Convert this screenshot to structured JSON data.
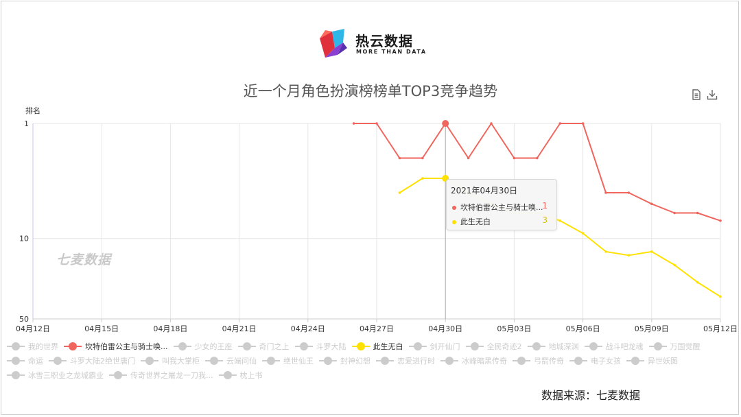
{
  "brand": {
    "name": "热云数据",
    "tagline": "MORE THAN DATA"
  },
  "watermark": "七麦数据",
  "source": "数据来源：七麦数据",
  "toolbar": {
    "icons": [
      "data-view-icon",
      "download-icon"
    ]
  },
  "chart_data": {
    "type": "line",
    "title": "近一个月角色扮演榜榜单TOP3竞争趋势",
    "ylabel": "排名",
    "xlabel": "",
    "y_scale": "log",
    "y_inverted": true,
    "ylim": [
      1,
      50
    ],
    "y_ticks": [
      "1",
      "10",
      "50"
    ],
    "x_tick_labels": [
      "04月12日",
      "04月15日",
      "04月18日",
      "04月21日",
      "04月24日",
      "04月27日",
      "04月30日",
      "05月03日",
      "05月06日",
      "05月09日",
      "05月12日"
    ],
    "x": [
      "04月12日",
      "04月13日",
      "04月14日",
      "04月15日",
      "04月16日",
      "04月17日",
      "04月18日",
      "04月19日",
      "04月20日",
      "04月21日",
      "04月22日",
      "04月23日",
      "04月24日",
      "04月25日",
      "04月26日",
      "04月27日",
      "04月28日",
      "04月29日",
      "04月30日",
      "05月01日",
      "05月02日",
      "05月03日",
      "05月04日",
      "05月05日",
      "05月06日",
      "05月07日",
      "05月08日",
      "05月09日",
      "05月10日",
      "05月11日",
      "05月12日"
    ],
    "grid": true,
    "series": [
      {
        "name": "坎特伯雷公主与骑士唤...",
        "color": "#f0665e",
        "values": [
          null,
          null,
          null,
          null,
          null,
          null,
          null,
          null,
          null,
          null,
          null,
          null,
          null,
          null,
          1,
          1,
          2,
          2,
          1,
          2,
          1,
          2,
          2,
          1,
          1,
          4,
          4,
          5,
          6,
          6,
          7
        ]
      },
      {
        "name": "此生无白",
        "color": "#ffe100",
        "values": [
          null,
          null,
          null,
          null,
          null,
          null,
          null,
          null,
          null,
          null,
          null,
          null,
          null,
          null,
          null,
          null,
          4,
          3,
          3,
          4,
          5,
          6,
          6,
          7,
          9,
          13,
          14,
          13,
          17,
          24,
          32
        ]
      }
    ],
    "tooltip": {
      "date": "2021年04月30日",
      "rows": [
        {
          "name": "坎特伯雷公主与骑士唤...",
          "value": "1",
          "color": "#f0665e"
        },
        {
          "name": "此生无白",
          "value": "3",
          "color": "#ffe100"
        }
      ]
    },
    "legend": {
      "placement": "bottom",
      "items": [
        {
          "name": "我的世界",
          "active": false
        },
        {
          "name": "坎特伯雷公主与骑士唤...",
          "active": true,
          "color": "#f0665e"
        },
        {
          "name": "少女的王座",
          "active": false
        },
        {
          "name": "奇门之上",
          "active": false
        },
        {
          "name": "斗罗大陆",
          "active": false
        },
        {
          "name": "此生无白",
          "active": true,
          "color": "#ffe100"
        },
        {
          "name": "剑开仙门",
          "active": false
        },
        {
          "name": "全民奇迹2",
          "active": false
        },
        {
          "name": "地城深渊",
          "active": false
        },
        {
          "name": "战斗吧龙魂",
          "active": false
        },
        {
          "name": "万国觉醒",
          "active": false
        },
        {
          "name": "命运",
          "active": false
        },
        {
          "name": "斗罗大陆2绝世唐门",
          "active": false
        },
        {
          "name": "叫我大掌柜",
          "active": false
        },
        {
          "name": "云端问仙",
          "active": false
        },
        {
          "name": "绝世仙王",
          "active": false
        },
        {
          "name": "封神幻想",
          "active": false
        },
        {
          "name": "恋爱进行时",
          "active": false
        },
        {
          "name": "冰峰暗黑传奇",
          "active": false
        },
        {
          "name": "弓箭传奇",
          "active": false
        },
        {
          "name": "电子女孩",
          "active": false
        },
        {
          "name": "异世妖图",
          "active": false
        },
        {
          "name": "冰雪三职业之龙城霸业",
          "active": false
        },
        {
          "name": "传奇世界之屠龙一刀我...",
          "active": false
        },
        {
          "name": "枕上书",
          "active": false
        }
      ]
    }
  }
}
